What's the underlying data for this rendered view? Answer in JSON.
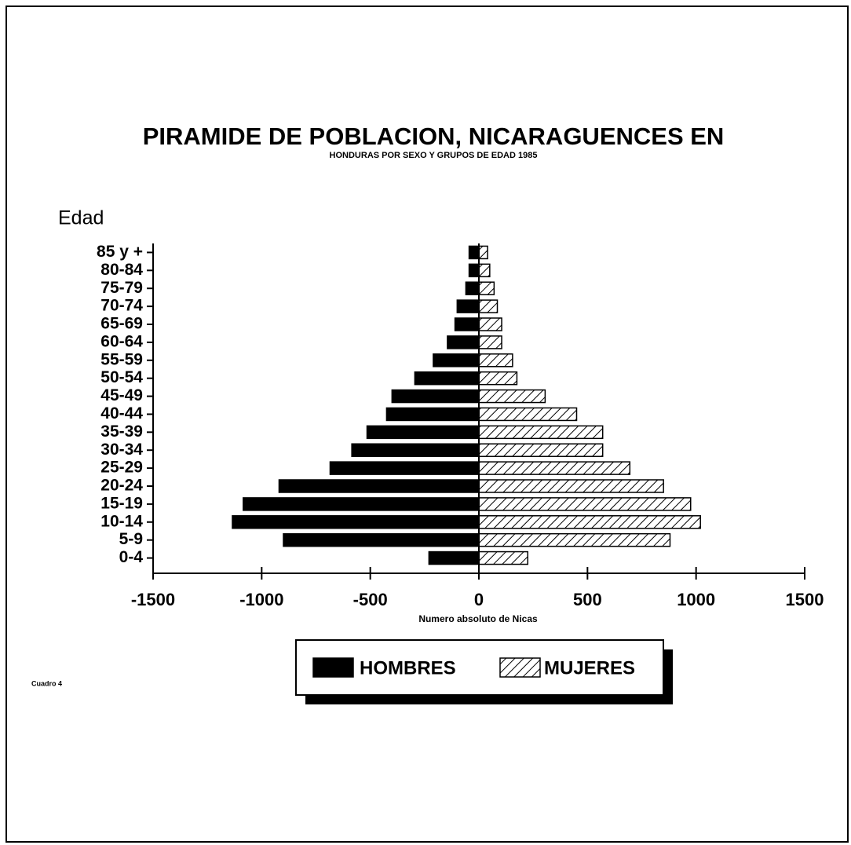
{
  "chart_data": {
    "type": "pyramid",
    "title": "PIRAMIDE DE POBLACION, NICARAGUENCES EN",
    "subtitle": "HONDURAS POR SEXO Y GRUPOS DE EDAD 1985",
    "ylabel": "Edad",
    "xlabel": "Numero absoluto de Nicas",
    "note": "Cuadro 4",
    "categories": [
      "85 y +",
      "80-84",
      "75-79",
      "70-74",
      "65-69",
      "60-64",
      "55-59",
      "50-54",
      "45-49",
      "40-44",
      "35-39",
      "30-34",
      "25-29",
      "20-24",
      "15-19",
      "10-14",
      "5-9",
      "0-4"
    ],
    "series": [
      {
        "name": "HOMBRES",
        "color": "#000000",
        "hatch": false,
        "values": [
          -45,
          -45,
          -60,
          -100,
          -110,
          -145,
          -210,
          -295,
          -400,
          -425,
          -515,
          -585,
          -685,
          -920,
          -1085,
          -1135,
          -900,
          -230
        ]
      },
      {
        "name": "MUJERES",
        "color": "#ffffff",
        "hatch": true,
        "values": [
          40,
          50,
          70,
          85,
          105,
          105,
          155,
          175,
          305,
          450,
          570,
          570,
          695,
          850,
          975,
          1020,
          880,
          225
        ]
      }
    ],
    "xlim": [
      -1500,
      1500
    ],
    "xticks": [
      -1500,
      -1000,
      -500,
      0,
      500,
      1000,
      1500
    ]
  }
}
